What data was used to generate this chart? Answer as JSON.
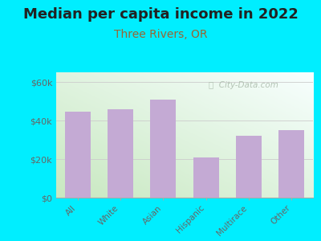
{
  "title": "Median per capita income in 2022",
  "subtitle": "Three Rivers, OR",
  "categories": [
    "All",
    "White",
    "Asian",
    "Hispanic",
    "Multirace",
    "Other"
  ],
  "values": [
    44500,
    46000,
    51000,
    21000,
    32000,
    35000
  ],
  "bar_color": "#c4aad4",
  "background_outer": "#00eeff",
  "ylabel_ticks": [
    "$0",
    "$20k",
    "$40k",
    "$60k"
  ],
  "ytick_values": [
    0,
    20000,
    40000,
    60000
  ],
  "ylim": [
    0,
    65000
  ],
  "title_fontsize": 13,
  "subtitle_fontsize": 10,
  "subtitle_color": "#996633",
  "tick_label_color": "#666666",
  "watermark_text": "ⓘ  City-Data.com",
  "watermark_color": "#aabbaa",
  "gradient_color_bl": "#c8e8c0",
  "gradient_color_tr": "#f8ffff"
}
